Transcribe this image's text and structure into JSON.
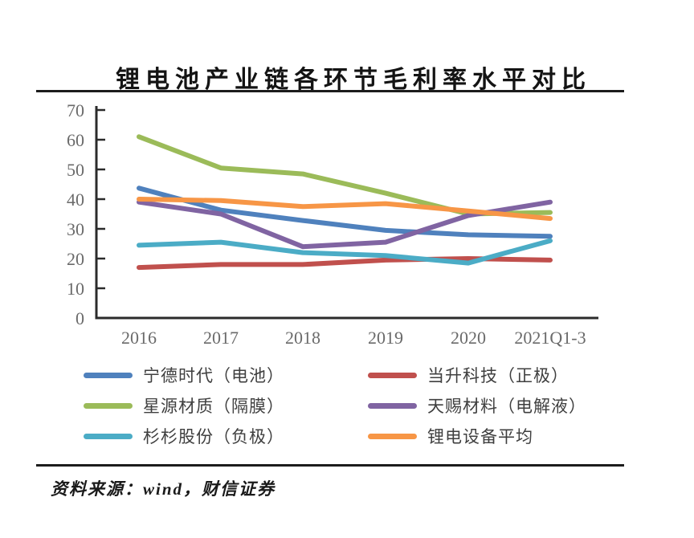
{
  "page": {
    "title": "锂电池产业链各环节毛利率水平对比",
    "source_note": "资料来源：wind，财信证券"
  },
  "chart_data": {
    "type": "line",
    "title": "锂电池产业链各环节毛利率水平对比",
    "categories": [
      "2016",
      "2017",
      "2018",
      "2019",
      "2020",
      "2021Q1-3"
    ],
    "series": [
      {
        "key": "catl-battery",
        "name": "宁德时代（电池）",
        "color": "#4F81BD",
        "values": [
          43.7,
          36.3,
          32.8,
          29.5,
          28.0,
          27.5
        ]
      },
      {
        "key": "easpring-cathode",
        "name": "当升科技（正极）",
        "color": "#C0504D",
        "values": [
          17.0,
          18.0,
          18.0,
          19.5,
          20.0,
          19.5
        ]
      },
      {
        "key": "senior-separator",
        "name": "星源材质（隔膜）",
        "color": "#9BBB59",
        "values": [
          61.0,
          50.5,
          48.5,
          42.0,
          35.0,
          35.5
        ]
      },
      {
        "key": "tinci-electrolyte",
        "name": "天赐材料（电解液）",
        "color": "#8064A2",
        "values": [
          39.0,
          35.0,
          24.0,
          25.5,
          34.5,
          39.0
        ]
      },
      {
        "key": "shanshan-anode",
        "name": "杉杉股份（负极）",
        "color": "#4BACC6",
        "values": [
          24.5,
          25.5,
          22.0,
          21.0,
          18.5,
          26.0
        ]
      },
      {
        "key": "equipment-average",
        "name": "锂电设备平均",
        "color": "#F79646",
        "values": [
          40.0,
          39.5,
          37.5,
          38.5,
          36.0,
          33.5
        ]
      }
    ],
    "xlabel": "",
    "ylabel": "",
    "ylim": [
      0,
      70
    ],
    "yticks": [
      0,
      10,
      20,
      30,
      40,
      50,
      60,
      70
    ],
    "grid": false,
    "legend_position": "bottom"
  }
}
